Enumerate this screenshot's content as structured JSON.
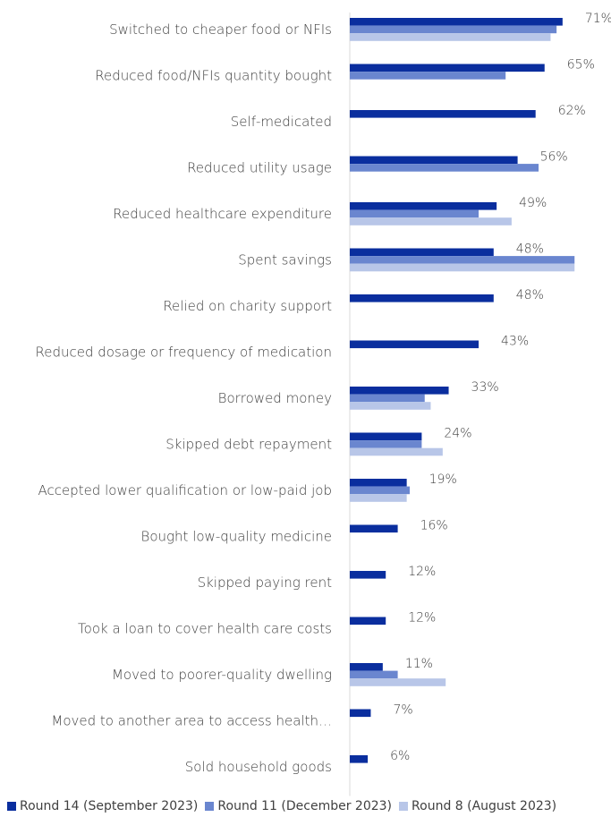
{
  "chart_data": {
    "type": "bar",
    "orientation": "horizontal",
    "categories": [
      "Switched to cheaper food or NFIs",
      "Reduced food/NFIs quantity bought",
      "Self-medicated",
      "Reduced utility usage",
      "Reduced healthcare expenditure",
      "Spent savings",
      "Relied on charity support",
      "Reduced dosage or frequency of medication",
      "Borrowed money",
      "Skipped debt repayment",
      "Accepted lower qualification or low-paid job",
      "Bought low-quality medicine",
      "Skipped paying rent",
      "Took a loan to cover health care costs",
      "Moved to poorer-quality dwelling",
      "Moved to another area to access health…",
      "Sold household goods"
    ],
    "series": [
      {
        "name": "Round 14 (September 2023)",
        "color": "#0a2e9e",
        "values": [
          71,
          65,
          62,
          56,
          49,
          48,
          48,
          43,
          33,
          24,
          19,
          16,
          12,
          12,
          11,
          7,
          6
        ]
      },
      {
        "name": "Round 11 (December 2023)",
        "color": "#6a86cf",
        "values": [
          69,
          52,
          null,
          63,
          43,
          75,
          null,
          null,
          25,
          24,
          20,
          null,
          null,
          null,
          16,
          null,
          null
        ]
      },
      {
        "name": "Round 8 (August 2023)",
        "color": "#b8c6e8",
        "values": [
          67,
          null,
          null,
          null,
          54,
          75,
          null,
          null,
          27,
          31,
          19,
          null,
          null,
          null,
          32,
          null,
          null
        ]
      }
    ],
    "data_labels": [
      "71%",
      "65%",
      "62%",
      "56%",
      "49%",
      "48%",
      "48%",
      "43%",
      "33%",
      "24%",
      "19%",
      "16%",
      "12%",
      "12%",
      "11%",
      "7%",
      "6%"
    ],
    "xlim": [
      0,
      100
    ],
    "grid": false,
    "legend_position": "bottom"
  }
}
